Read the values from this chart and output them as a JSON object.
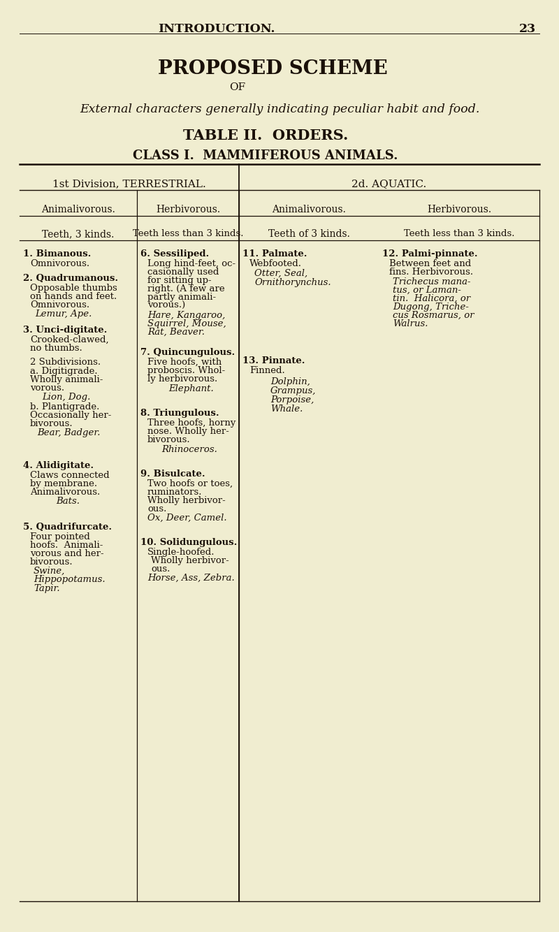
{
  "bg_color": "#f0edd0",
  "text_color": "#1a1008",
  "page_number": "23",
  "header_title": "INTRODUCTION.",
  "main_title": "PROPOSED SCHEME",
  "of_text": "OF",
  "subtitle_italic": "External characters generally indicating peculiar habit and food.",
  "table_title": "TABLE II.  ORDERS.",
  "class_title": "CLASS I.  MAMMIFEROUS ANIMALS.",
  "col_header_left": "1st Division, TERRESTRIAL.",
  "col_header_right": "2d. AQUATIC.",
  "sub_headers": [
    "Animalivorous.",
    "Herbivorous.",
    "Animalivorous.",
    "Herbivorous."
  ],
  "teeth_row": [
    "Teeth, 3 kinds.",
    "Teeth less than 3 kinds.",
    "Teeth of 3 kinds.",
    "Teeth less than 3 kinds."
  ],
  "figw": 8.0,
  "figh": 13.34,
  "dpi": 100
}
